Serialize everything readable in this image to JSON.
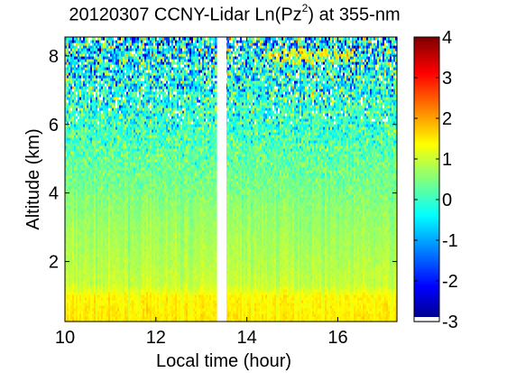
{
  "chart_data": {
    "type": "heatmap",
    "title": {
      "prefix": "20120307 CCNY-Lidar Ln(Pz",
      "superscript": "2",
      "suffix": ") at 355-nm"
    },
    "xlabel": "Local time (hour)",
    "ylabel": "Altitude (km)",
    "xlim": [
      10,
      17.3
    ],
    "ylim": [
      0.25,
      8.55
    ],
    "x_ticks": [
      10,
      12,
      14,
      16
    ],
    "y_ticks": [
      2,
      4,
      6,
      8
    ],
    "data_gap": [
      13.35,
      13.55
    ],
    "colorbar": {
      "colormap": "jet",
      "range": [
        -3,
        4
      ],
      "ticks": [
        -3,
        -2,
        -1,
        0,
        1,
        2,
        3,
        4
      ],
      "below_range_color": "#ffffff"
    },
    "altitude_profile": [
      {
        "altitude_km": 0.3,
        "value": 1.5
      },
      {
        "altitude_km": 1.0,
        "value": 1.4
      },
      {
        "altitude_km": 1.3,
        "value": 1.0
      },
      {
        "altitude_km": 2.0,
        "value": 0.85
      },
      {
        "altitude_km": 3.0,
        "value": 0.7
      },
      {
        "altitude_km": 4.0,
        "value": 0.5
      },
      {
        "altitude_km": 5.0,
        "value": 0.3
      },
      {
        "altitude_km": 6.0,
        "value": 0.05
      },
      {
        "altitude_km": 7.0,
        "value": -0.2
      },
      {
        "altitude_km": 8.5,
        "value": -0.5
      }
    ],
    "feature": {
      "description": "Thin elevated layer",
      "time_range": [
        14.5,
        16.4
      ],
      "altitude_km": 8.05,
      "value": 1.5
    }
  }
}
